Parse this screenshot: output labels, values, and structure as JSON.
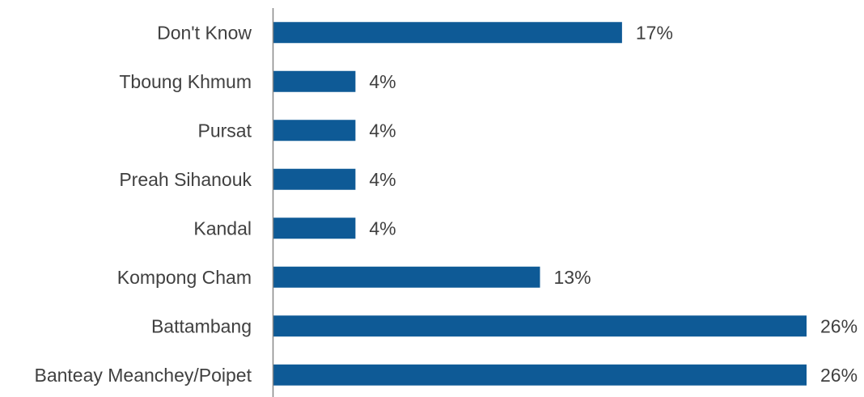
{
  "chart_data": {
    "type": "bar",
    "orientation": "horizontal",
    "title": "",
    "xlabel": "",
    "ylabel": "",
    "categories": [
      "Don't Know",
      "Tboung Khmum",
      "Pursat",
      "Preah Sihanouk",
      "Kandal",
      "Kompong Cham",
      "Battambang",
      "Banteay Meanchey/Poipet"
    ],
    "values": [
      17,
      4,
      4,
      4,
      4,
      13,
      26,
      26
    ],
    "value_labels": [
      "17%",
      "4%",
      "4%",
      "4%",
      "4%",
      "13%",
      "26%",
      "26%"
    ],
    "unit": "%",
    "xlim": [
      0,
      26
    ],
    "grid": false,
    "legend": "none",
    "bar_color": "#0e5a96",
    "axis_color": "#888888"
  }
}
